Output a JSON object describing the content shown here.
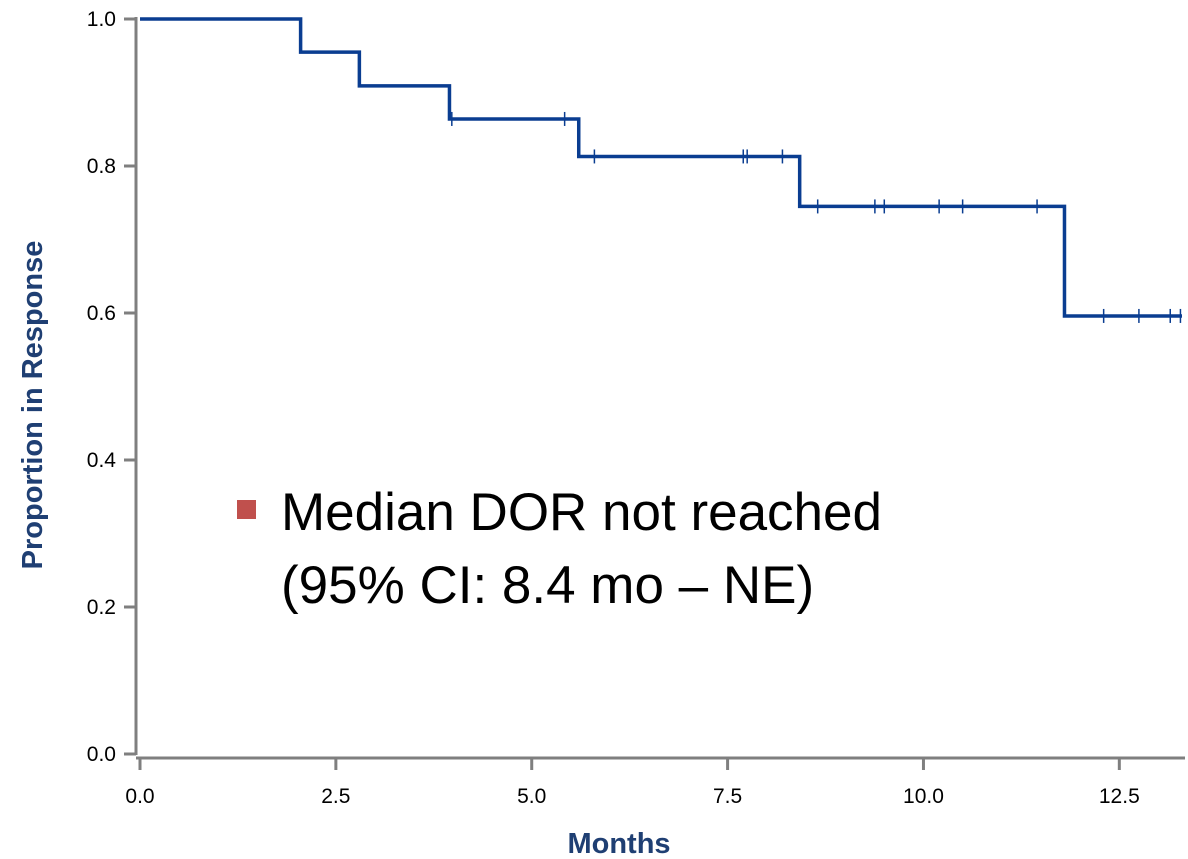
{
  "chart_data": {
    "type": "line",
    "title": "",
    "xlabel": "Months",
    "ylabel": "Proportion in Response",
    "xlim": [
      0,
      13.3
    ],
    "ylim": [
      0,
      1.0
    ],
    "x_ticks": [
      "0.0",
      "2.5",
      "5.0",
      "7.5",
      "10.0",
      "12.5"
    ],
    "x_tick_values": [
      0,
      2.5,
      5,
      7.5,
      10,
      12.5
    ],
    "y_ticks": [
      "0.0",
      "0.2",
      "0.4",
      "0.6",
      "0.8",
      "1.0"
    ],
    "y_tick_values": [
      0,
      0.2,
      0.4,
      0.6,
      0.8,
      1.0
    ],
    "grid": false,
    "series": [
      {
        "color": "#0a3d91",
        "step_x": [
          0,
          2.05,
          2.8,
          3.95,
          5.6,
          8.42,
          11.8,
          13.3
        ],
        "step_y": [
          1.0,
          0.955,
          0.909,
          0.864,
          0.813,
          0.745,
          0.596,
          0.596
        ],
        "censor_x": [
          3.98,
          5.42,
          5.8,
          7.7,
          7.75,
          8.2,
          8.65,
          9.38,
          9.5,
          10.2,
          10.5,
          11.45,
          12.3,
          12.75,
          13.15,
          13.28
        ]
      }
    ],
    "annotation": {
      "bullet_color": "#c0504d",
      "line1": "Median DOR not reached",
      "line2": "(95% CI: 8.4 mo – NE)"
    }
  }
}
